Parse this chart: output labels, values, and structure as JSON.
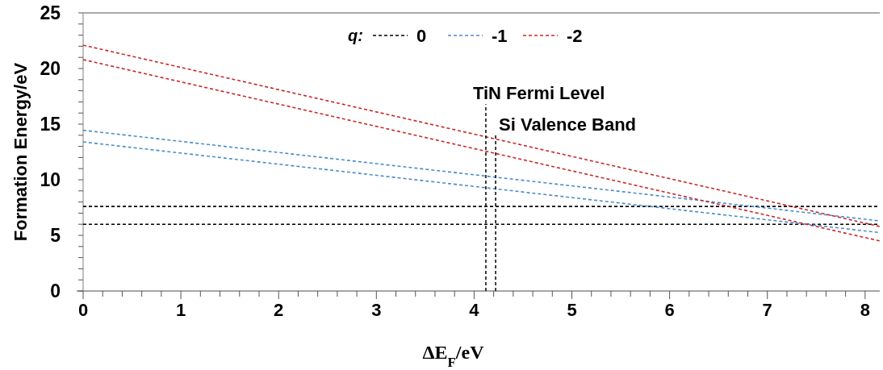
{
  "chart_data": {
    "type": "line",
    "xlabel": "ΔE$_{F}$/eV",
    "ylabel": "Formation Energy/eV",
    "legend_title": "q:",
    "legend": "top",
    "line_style": "dashed",
    "grid": false,
    "xlim": [
      0,
      8.15
    ],
    "xticks": [
      0,
      1,
      2,
      3,
      4,
      5,
      6,
      7,
      8
    ],
    "ylim": [
      0,
      25
    ],
    "yticks": [
      0,
      5,
      10,
      15,
      20,
      25
    ],
    "x": [
      0,
      8.15
    ],
    "series": [
      {
        "name": "0",
        "color": "#000000",
        "values": [
          7.6,
          7.6
        ]
      },
      {
        "color": "#000000",
        "values": [
          6.0,
          6.0
        ]
      },
      {
        "name": "-1",
        "color": "#4a8ccc",
        "values": [
          14.45,
          6.3
        ]
      },
      {
        "color": "#4a8ccc",
        "values": [
          13.4,
          5.25
        ]
      },
      {
        "name": "-2",
        "color": "#c8282a",
        "values": [
          22.1,
          5.8
        ]
      },
      {
        "color": "#c8282a",
        "values": [
          20.8,
          4.5
        ]
      }
    ],
    "ref_lines": [
      {
        "axis": "x",
        "value": 4.12,
        "label": "TiN Fermi Level",
        "color": "#000000",
        "line_style": "dashed"
      },
      {
        "axis": "x",
        "value": 4.22,
        "label": "Si Valence Band",
        "color": "#000000",
        "line_style": "dashed"
      }
    ]
  }
}
